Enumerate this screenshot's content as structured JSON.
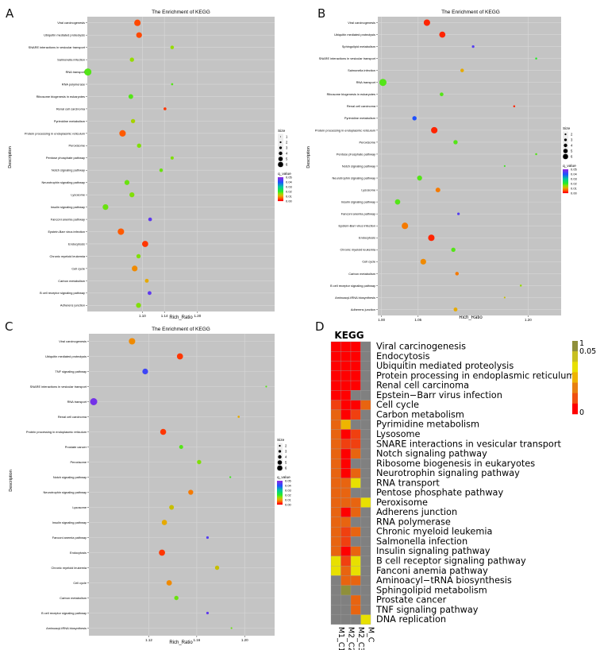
{
  "panels": {
    "A": {
      "letter": "A",
      "chart_data": {
        "type": "scatter",
        "title": "The Enrichment of KEGG",
        "xlabel": "Rich_Ratio",
        "ylabel": "Description",
        "xlim": [
          1.0,
          1.34
        ],
        "xticks": [
          "1.10",
          "1.14",
          "1.20"
        ],
        "xtick_values": [
          1.1,
          1.14,
          1.2
        ],
        "legend_size_title": "Size",
        "legend_sizes": [
          1,
          2,
          3,
          4,
          5,
          6
        ],
        "legend_color_title": "q_value",
        "legend_color_ticks": [
          "0.05",
          "0.04",
          "0.03",
          "0.02",
          "0.01",
          "0.00"
        ],
        "categories": [
          "Viral carcinogenesis",
          "Ubiquitin mediated proteolysis",
          "SNARE interactions in vesicular transport",
          "Salmonella infection",
          "RNA transport",
          "RNA polymerase",
          "Ribosome biogenesis in eukaryotes",
          "Renal cell carcinoma",
          "Pyrimidine metabolism",
          "Protein processing in endoplasmic reticulum",
          "Peroxisome",
          "Pentose phosphate pathway",
          "Notch signaling pathway",
          "Neurotrophin signaling pathway",
          "Lysosome",
          "Insulin signaling pathway",
          "Fanconi anemia pathway",
          "Epstein-Barr virus infection",
          "Endocytosis",
          "Chronic myeloid leukemia",
          "Cell cycle",
          "Carbon metabolism",
          "B cell receptor signaling pathway",
          "Adherens junction"
        ],
        "points": [
          {
            "x": 1.091,
            "size": 4.5,
            "q": 0.004
          },
          {
            "x": 1.094,
            "size": 4,
            "q": 0.004
          },
          {
            "x": 1.154,
            "size": 2.5,
            "q": 0.015
          },
          {
            "x": 1.081,
            "size": 3,
            "q": 0.015
          },
          {
            "x": 1.001,
            "size": 5,
            "q": 0.018
          },
          {
            "x": 1.154,
            "size": 1.5,
            "q": 0.018
          },
          {
            "x": 1.079,
            "size": 3.3,
            "q": 0.018
          },
          {
            "x": 1.141,
            "size": 2,
            "q": 0.003
          },
          {
            "x": 1.083,
            "size": 3,
            "q": 0.014
          },
          {
            "x": 1.064,
            "size": 4.5,
            "q": 0.005
          },
          {
            "x": 1.094,
            "size": 3,
            "q": 0.016
          },
          {
            "x": 1.154,
            "size": 2.3,
            "q": 0.016
          },
          {
            "x": 1.134,
            "size": 2.5,
            "q": 0.017
          },
          {
            "x": 1.072,
            "size": 3.5,
            "q": 0.017
          },
          {
            "x": 1.081,
            "size": 3.5,
            "q": 0.016
          },
          {
            "x": 1.033,
            "size": 4,
            "q": 0.017
          },
          {
            "x": 1.114,
            "size": 2.6,
            "q": 0.046
          },
          {
            "x": 1.061,
            "size": 4.5,
            "q": 0.005
          },
          {
            "x": 1.105,
            "size": 4.3,
            "q": 0.003
          },
          {
            "x": 1.093,
            "size": 3,
            "q": 0.016
          },
          {
            "x": 1.086,
            "size": 4,
            "q": 0.008
          },
          {
            "x": 1.108,
            "size": 2.7,
            "q": 0.01
          },
          {
            "x": 1.113,
            "size": 2.7,
            "q": 0.046
          },
          {
            "x": 1.093,
            "size": 3.5,
            "q": 0.016
          }
        ]
      }
    },
    "B": {
      "letter": "B",
      "chart_data": {
        "type": "scatter",
        "title": "The Enrichment of KEGG",
        "xlabel": "Rich_Ratio",
        "ylabel": "Description",
        "xlim": [
          0.995,
          1.245
        ],
        "xticks": [
          "1.00",
          "1.05",
          "1.20"
        ],
        "xtick_values": [
          1.0,
          1.05,
          1.2
        ],
        "legend_size_title": "Size",
        "legend_sizes": [
          2,
          3,
          4,
          5,
          6
        ],
        "legend_color_title": "q_value",
        "legend_color_ticks": [
          "0.05",
          "0.04",
          "0.03",
          "0.02",
          "0.01",
          "0.00"
        ],
        "categories": [
          "Viral carcinogenesis",
          "Ubiquitin mediated proteolysis",
          "Sphingolipid metabolism",
          "SNARE interactions in vesicular transport",
          "Salmonella infection",
          "RNA transport",
          "Ribosome biogenesis in eukaryotes",
          "Renal cell carcinoma",
          "Pyrimidine metabolism",
          "Protein processing in endoplasmic reticulum",
          "Peroxisome",
          "Pentose phosphate pathway",
          "Notch signaling pathway",
          "Neurotrophin signaling pathway",
          "Lysosome",
          "Insulin signaling pathway",
          "Fanconi anemia pathway",
          "Epstein-Barr virus infection",
          "Endocytosis",
          "Chronic myeloid leukemia",
          "Cell cycle",
          "Carbon metabolism",
          "B cell receptor signaling pathway",
          "Aminoacyl-tRNA biosynthesis",
          "Adherens junction"
        ],
        "points": [
          {
            "x": 1.062,
            "size": 4.5,
            "q": 0.002
          },
          {
            "x": 1.083,
            "size": 4.3,
            "q": 0.002
          },
          {
            "x": 1.125,
            "size": 1.8,
            "q": 0.045
          },
          {
            "x": 1.211,
            "size": 1.4,
            "q": 0.02
          },
          {
            "x": 1.11,
            "size": 2.5,
            "q": 0.01
          },
          {
            "x": 1.002,
            "size": 5,
            "q": 0.018
          },
          {
            "x": 1.082,
            "size": 2.6,
            "q": 0.018
          },
          {
            "x": 1.181,
            "size": 1.4,
            "q": 0.002
          },
          {
            "x": 1.045,
            "size": 3,
            "q": 0.04
          },
          {
            "x": 1.072,
            "size": 4.5,
            "q": 0.002
          },
          {
            "x": 1.101,
            "size": 3,
            "q": 0.018
          },
          {
            "x": 1.211,
            "size": 1.4,
            "q": 0.018
          },
          {
            "x": 1.168,
            "size": 1.2,
            "q": 0.019
          },
          {
            "x": 1.052,
            "size": 3.5,
            "q": 0.018
          },
          {
            "x": 1.077,
            "size": 3.3,
            "q": 0.007
          },
          {
            "x": 1.022,
            "size": 3.7,
            "q": 0.018
          },
          {
            "x": 1.105,
            "size": 1.8,
            "q": 0.045
          },
          {
            "x": 1.032,
            "size": 4.5,
            "q": 0.007
          },
          {
            "x": 1.068,
            "size": 4.5,
            "q": 0.002
          },
          {
            "x": 1.098,
            "size": 3,
            "q": 0.018
          },
          {
            "x": 1.057,
            "size": 4,
            "q": 0.008
          },
          {
            "x": 1.103,
            "size": 2.5,
            "q": 0.007
          },
          {
            "x": 1.19,
            "size": 1.4,
            "q": 0.015
          },
          {
            "x": 1.168,
            "size": 1.2,
            "q": 0.012
          },
          {
            "x": 1.101,
            "size": 2.7,
            "q": 0.01
          }
        ]
      }
    },
    "C": {
      "letter": "C",
      "chart_data": {
        "type": "scatter",
        "title": "The Enrichment of KEGG",
        "xlabel": "Rich_Ratio",
        "ylabel": "Description",
        "xlim": [
          1.07,
          1.225
        ],
        "xticks": [
          "1.12",
          "1.16",
          "1.20"
        ],
        "xtick_values": [
          1.12,
          1.16,
          1.2
        ],
        "legend_size_title": "Size",
        "legend_sizes": [
          2,
          3,
          4,
          5,
          6
        ],
        "legend_color_title": "q_value",
        "legend_color_ticks": [
          "0.05",
          "0.04",
          "0.03",
          "0.02",
          "0.01",
          "0.00"
        ],
        "categories": [
          "Viral carcinogenesis",
          "Ubiquitin mediated proteolysis",
          "TNF signaling pathway",
          "SNARE interactions in vesicular transport",
          "RNA transport",
          "Renal cell carcinoma",
          "Protein processing in endoplasmic reticulum",
          "Prostate cancer",
          "Peroxisome",
          "Notch signaling pathway",
          "Neurotrophin signaling pathway",
          "Lysosome",
          "Insulin signaling pathway",
          "Fanconi anemia pathway",
          "Endocytosis",
          "Chronic myeloid leukemia",
          "Cell cycle",
          "Carbon metabolism",
          "B cell receptor signaling pathway",
          "Aminoacyl-tRNA biosynthesis"
        ],
        "points": [
          {
            "x": 1.106,
            "size": 4.5,
            "q": 0.008
          },
          {
            "x": 1.146,
            "size": 4.3,
            "q": 0.003
          },
          {
            "x": 1.117,
            "size": 4,
            "q": 0.043
          },
          {
            "x": 1.218,
            "size": 1.2,
            "q": 0.018
          },
          {
            "x": 1.074,
            "size": 5,
            "q": 0.048
          },
          {
            "x": 1.195,
            "size": 1.5,
            "q": 0.01
          },
          {
            "x": 1.132,
            "size": 4.2,
            "q": 0.003
          },
          {
            "x": 1.147,
            "size": 2.8,
            "q": 0.018
          },
          {
            "x": 1.162,
            "size": 3,
            "q": 0.016
          },
          {
            "x": 1.188,
            "size": 1.3,
            "q": 0.019
          },
          {
            "x": 1.155,
            "size": 3.5,
            "q": 0.007
          },
          {
            "x": 1.139,
            "size": 3.3,
            "q": 0.012
          },
          {
            "x": 1.133,
            "size": 3.7,
            "q": 0.01
          },
          {
            "x": 1.169,
            "size": 1.8,
            "q": 0.045
          },
          {
            "x": 1.131,
            "size": 4.3,
            "q": 0.003
          },
          {
            "x": 1.177,
            "size": 3,
            "q": 0.012
          },
          {
            "x": 1.137,
            "size": 3.8,
            "q": 0.008
          },
          {
            "x": 1.143,
            "size": 3,
            "q": 0.017
          },
          {
            "x": 1.169,
            "size": 1.8,
            "q": 0.046
          },
          {
            "x": 1.189,
            "size": 1.2,
            "q": 0.017
          }
        ]
      }
    },
    "D": {
      "letter": "D",
      "chart_data": {
        "type": "heatmap",
        "title": "KEGG",
        "columns": [
          "M1_C1",
          "M2_C2",
          "M2_C3",
          "M_C"
        ],
        "rows": [
          "Viral carcinogenesis",
          "Endocytosis",
          "Ubiquitin mediated proteolysis",
          "Protein processing in endoplasmic reticulum",
          "Renal cell carcinoma",
          "Epstein−Barr virus infection",
          "Cell cycle",
          "Carbon metabolism",
          "Pyrimidine metabolism",
          "Lysosome",
          "SNARE interactions in vesicular transport",
          "Notch signaling pathway",
          "Ribosome biogenesis in eukaryotes",
          "Neurotrophin signaling pathway",
          "RNA transport",
          "Pentose phosphate pathway",
          "Peroxisome",
          "Adherens junction",
          "RNA polymerase",
          "Chronic myeloid leukemia",
          "Salmonella infection",
          "Insulin signaling pathway",
          "B cell receptor signaling pathway",
          "Fanconi anemia pathway",
          "Aminoacyl−tRNA biosynthesis",
          "Sphingolipid metabolism",
          "Prostate cancer",
          "TNF signaling pathway",
          "DNA replication"
        ],
        "values": [
          [
            0.0005,
            0.0005,
            0.0005,
            null
          ],
          [
            0.0005,
            0.0005,
            0.0005,
            null
          ],
          [
            0.0005,
            0.0005,
            0.0005,
            null
          ],
          [
            0.0005,
            0.0005,
            0.0005,
            null
          ],
          [
            0.0005,
            0.0005,
            0.0005,
            null
          ],
          [
            0.0005,
            0.0005,
            null,
            null
          ],
          [
            0.004,
            0.0005,
            0.0005,
            0.012
          ],
          [
            0.012,
            0.0005,
            0.003,
            null
          ],
          [
            0.012,
            0.02,
            null,
            null
          ],
          [
            0.012,
            0.0005,
            0.004,
            null
          ],
          [
            0.012,
            0.005,
            0.005,
            null
          ],
          [
            0.012,
            0.0005,
            0.01,
            null
          ],
          [
            0.012,
            0.0005,
            null,
            null
          ],
          [
            0.012,
            0.0005,
            0.012,
            null
          ],
          [
            0.012,
            0.012,
            0.04,
            null
          ],
          [
            0.012,
            0.012,
            null,
            null
          ],
          [
            0.012,
            0.012,
            0.012,
            0.04
          ],
          [
            0.012,
            0.0005,
            0.012,
            null
          ],
          [
            0.012,
            0.012,
            null,
            null
          ],
          [
            0.012,
            0.004,
            0.012,
            null
          ],
          [
            0.012,
            0.004,
            null,
            null
          ],
          [
            0.012,
            0.0005,
            0.012,
            null
          ],
          [
            0.04,
            0.003,
            0.04,
            null
          ],
          [
            0.04,
            0.012,
            0.04,
            null
          ],
          [
            null,
            0.012,
            0.012,
            null
          ],
          [
            null,
            0.3,
            null,
            null
          ],
          [
            null,
            null,
            0.012,
            null
          ],
          [
            null,
            null,
            0.012,
            null
          ],
          [
            null,
            null,
            null,
            0.04
          ]
        ],
        "legend_ticks": [
          "1",
          "0.05",
          "0"
        ]
      }
    }
  },
  "colors": {
    "panel_bg": "#c4c4c4",
    "grid": "#d9d9d9",
    "missing": "#808080",
    "low": "#ff0000",
    "high_q": "#8a2be2"
  }
}
